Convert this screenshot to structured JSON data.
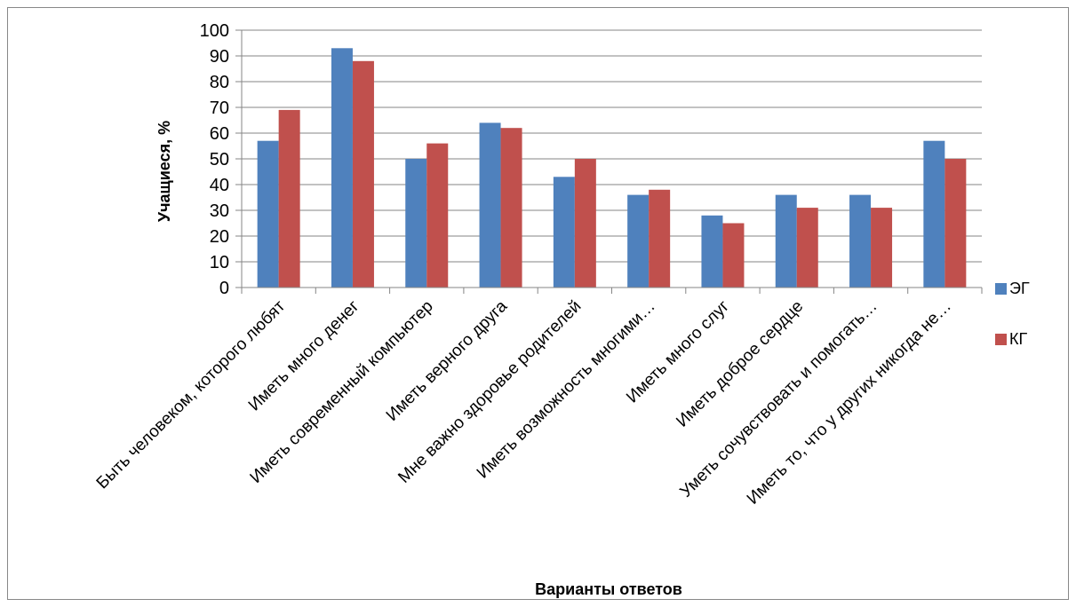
{
  "chart_data": {
    "type": "bar",
    "title": "",
    "xlabel": "Варианты ответов",
    "ylabel": "Учащиеся, %",
    "ylim": [
      0,
      100
    ],
    "yticks": [
      "0",
      "10",
      "20",
      "30",
      "40",
      "50",
      "60",
      "70",
      "80",
      "90",
      "100"
    ],
    "grid": true,
    "legend_position": "right",
    "categories": [
      "Быть человеком, которого любят",
      "Иметь много денег",
      "Иметь современный компьютер",
      "Иметь верного друга",
      "Мне важно здоровье родителей",
      "Иметь возможность многими…",
      "Иметь много слуг",
      "Иметь доброе сердце",
      "Уметь сочувствовать и помогать…",
      "Иметь то, что у других никогда не…"
    ],
    "series": [
      {
        "name": "ЭГ",
        "color": "#4F81BD",
        "values": [
          57,
          93,
          50,
          64,
          43,
          36,
          28,
          36,
          36,
          57
        ]
      },
      {
        "name": "КГ",
        "color": "#C0504D",
        "values": [
          69,
          88,
          56,
          62,
          50,
          38,
          25,
          31,
          31,
          50
        ]
      }
    ]
  }
}
